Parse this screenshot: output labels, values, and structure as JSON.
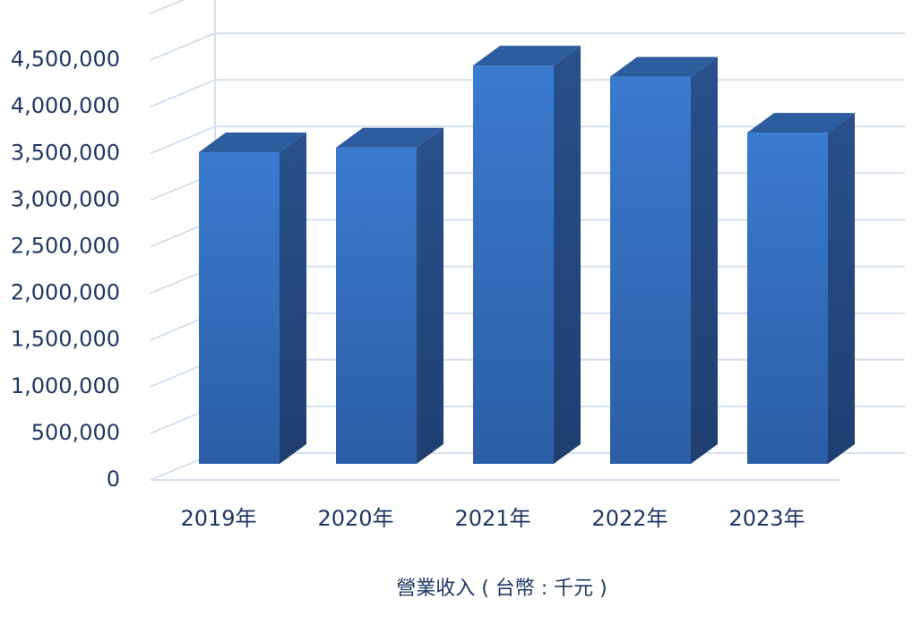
{
  "chart_data": {
    "type": "bar3d",
    "title": "營業收入 ( 台幣 : 千元 )",
    "categories": [
      "2019年",
      "2020年",
      "2021年",
      "2022年",
      "2023年"
    ],
    "values": [
      3340000,
      3390000,
      4270000,
      4150000,
      3550000
    ],
    "color": "#3a78cc",
    "ylim": [
      0,
      5000000
    ],
    "yticks": [
      0,
      {
        "value": 500000,
        "label": "500,000"
      },
      {
        "value": 1000000,
        "label": "1,000,000"
      },
      {
        "value": 1500000,
        "label": "1,500,000"
      },
      {
        "value": 2000000,
        "label": "2,000,000"
      },
      {
        "value": 2500000,
        "label": "2,500,000"
      },
      {
        "value": 3000000,
        "label": "3,000,000"
      },
      {
        "value": 3500000,
        "label": "3,500,000"
      },
      {
        "value": 4000000,
        "label": "4,000,000"
      },
      {
        "value": 4500000,
        "label": "4,500,000"
      }
    ],
    "grid": true
  }
}
